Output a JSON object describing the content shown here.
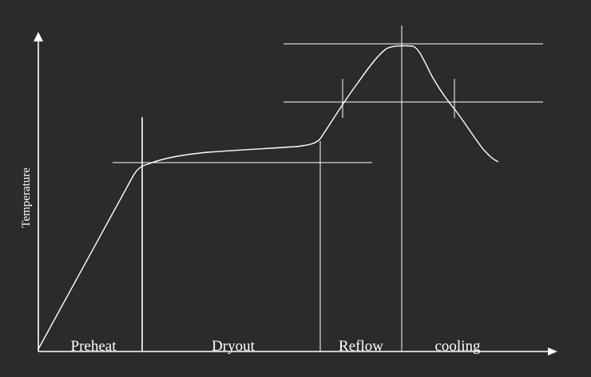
{
  "diagram": {
    "y_axis_label": "Temperature",
    "zones": [
      {
        "id": "preheat",
        "label": "Preheat"
      },
      {
        "id": "dryout",
        "label": "Dryout"
      },
      {
        "id": "reflow",
        "label": "Reflow"
      },
      {
        "id": "cooling",
        "label": "cooling"
      }
    ],
    "colors": {
      "background": "#2b2b2b",
      "lines": "#ffffff",
      "text": "#ffffff"
    }
  }
}
